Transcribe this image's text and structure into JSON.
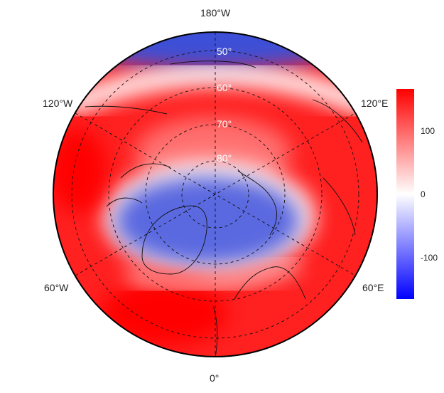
{
  "map": {
    "projection": "north-polar-stereographic",
    "lon_labels": [
      "180°W",
      "120°E",
      "60°E",
      "0°",
      "60°W",
      "120°W"
    ],
    "lat_labels": [
      "50°",
      "60°",
      "70°",
      "80°"
    ],
    "field_colors": {
      "positive": "#ff0000",
      "zero": "#ffffff",
      "negative": "#0000ff"
    }
  },
  "colorbar": {
    "ticks": [
      "100",
      "0",
      "-100"
    ],
    "range": [
      -170,
      170
    ],
    "colors": [
      "#0000ff",
      "#ffffff",
      "#ff0000"
    ]
  }
}
